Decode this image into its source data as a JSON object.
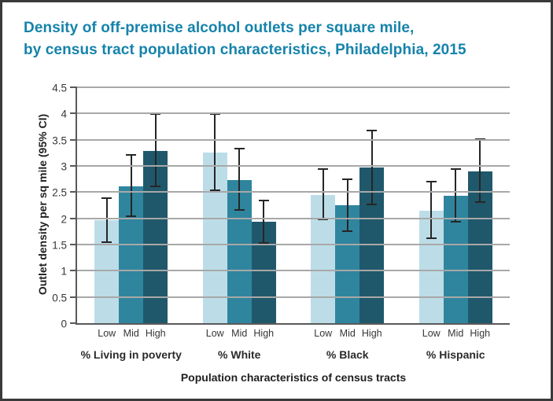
{
  "title": {
    "line1": "Density of off-premise alcohol outlets per square mile,",
    "line2": "by census tract population characteristics, Philadelphia, 2015",
    "color": "#1583ab"
  },
  "chart_data": {
    "type": "bar",
    "title": "Density of off-premise alcohol outlets per square mile, by census tract population characteristics, Philadelphia, 2015",
    "xlabel": "Population characteristics of census tracts",
    "ylabel": "Outlet density per sq mile (95% CI)",
    "ylim": [
      0,
      4.5
    ],
    "grid": true,
    "legend_position": "none",
    "yticks": [
      "0",
      "0.5",
      "1",
      "1.5",
      "2",
      "2.5",
      "3",
      "3.5",
      "4",
      "4.5"
    ],
    "categories": [
      "% Living in poverty",
      "% White",
      "% Black",
      "% Hispanic"
    ],
    "subcategories": [
      "Low",
      "Mid",
      "High"
    ],
    "series": [
      {
        "name": "Low",
        "color": "#bcdde8",
        "values": [
          1.96,
          3.26,
          2.45,
          2.15
        ],
        "ci_low": [
          1.53,
          2.52,
          1.96,
          1.6
        ],
        "ci_high": [
          2.4,
          4.0,
          2.95,
          2.71
        ]
      },
      {
        "name": "Mid",
        "color": "#2f859e",
        "values": [
          2.61,
          2.73,
          2.25,
          2.43
        ],
        "ci_low": [
          2.02,
          2.14,
          1.74,
          1.92
        ],
        "ci_high": [
          3.22,
          3.35,
          2.76,
          2.95
        ]
      },
      {
        "name": "High",
        "color": "#20586b",
        "values": [
          3.29,
          1.94,
          2.97,
          2.9
        ],
        "ci_low": [
          2.59,
          1.52,
          2.25,
          2.3
        ],
        "ci_high": [
          4.0,
          2.36,
          3.69,
          3.52
        ]
      }
    ],
    "colors": {
      "gridline": "#a8a8a8",
      "axis": "#595959",
      "error_bar": "#262626",
      "tick_text": "#363636",
      "frame_border": "#3a3a3a"
    }
  }
}
